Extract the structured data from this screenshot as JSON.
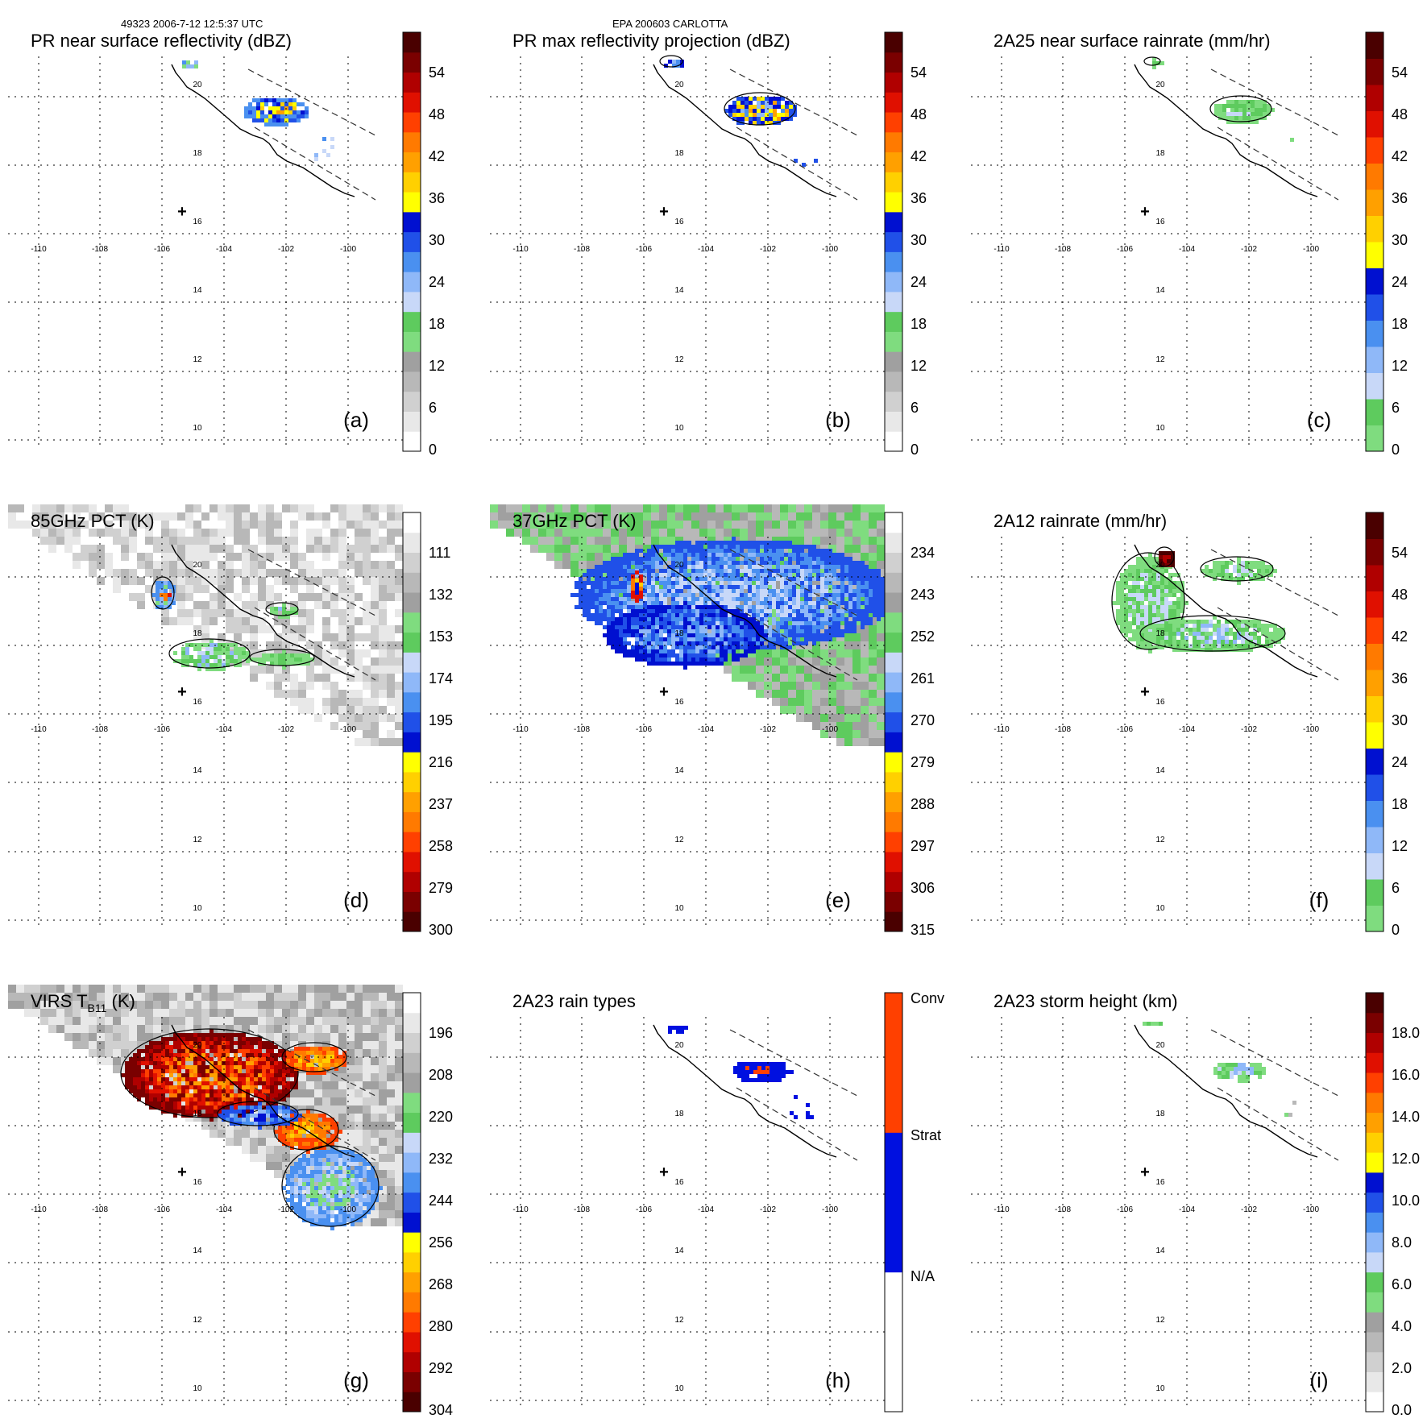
{
  "header": {
    "orbit_time": "49323 2006-7-12 12:5:37 UTC",
    "storm": "EPA 200603 CARLOTTA"
  },
  "map": {
    "lon_labels": [
      "-110",
      "-108",
      "-106",
      "-104",
      "-102",
      "-100"
    ],
    "lat_labels": [
      "20",
      "18",
      "16",
      "14",
      "12",
      "10"
    ],
    "center_marker": "+"
  },
  "colors": {
    "coast": "#000000",
    "grid": "#000000",
    "swath": "#333333",
    "palette_dbz": [
      "#ffffff",
      "#e8e8e8",
      "#d0d0d0",
      "#b8b8b8",
      "#a0a0a0",
      "#7fdc7f",
      "#5ecb5e",
      "#c8d8f8",
      "#8fb8f8",
      "#4a90f0",
      "#2050e8",
      "#0010d0",
      "#ffff00",
      "#ffd000",
      "#ffa000",
      "#ff7a00",
      "#ff4000",
      "#e01000",
      "#b00000",
      "#7a0000",
      "#4a0000"
    ],
    "palette_rain": [
      "#7fdc7f",
      "#5ecb5e",
      "#c8d8f8",
      "#8fb8f8",
      "#4a90f0",
      "#2050e8",
      "#0010d0",
      "#ffff00",
      "#ffd000",
      "#ffa000",
      "#ff7a00",
      "#ff4000",
      "#e01000",
      "#b00000",
      "#7a0000",
      "#4a0000"
    ],
    "palette_pct": [
      "#4a0000",
      "#7a0000",
      "#b00000",
      "#e01000",
      "#ff4000",
      "#ff7a00",
      "#ffa000",
      "#ffd000",
      "#ffff00",
      "#0010d0",
      "#2050e8",
      "#4a90f0",
      "#8fb8f8",
      "#c8d8f8",
      "#5ecb5e",
      "#7fdc7f",
      "#a0a0a0",
      "#b8b8b8",
      "#d0d0d0",
      "#e8e8e8",
      "#ffffff"
    ],
    "palette_type": [
      "#ffffff",
      "#0010e0",
      "#ff4000"
    ]
  },
  "panels": [
    {
      "id": "a",
      "title": "PR near surface reflectivity (dBZ)",
      "label": "(a)",
      "ticks": [
        "0",
        "6",
        "12",
        "18",
        "24",
        "30",
        "36",
        "42",
        "48",
        "54"
      ],
      "palette": "palette_dbz",
      "field": "pr"
    },
    {
      "id": "b",
      "title": "PR max reflectivity projection (dBZ)",
      "label": "(b)",
      "ticks": [
        "0",
        "6",
        "12",
        "18",
        "24",
        "30",
        "36",
        "42",
        "48",
        "54"
      ],
      "palette": "palette_dbz",
      "field": "prmax"
    },
    {
      "id": "c",
      "title": "2A25 near surface rainrate (mm/hr)",
      "label": "(c)",
      "ticks": [
        "0",
        "6",
        "12",
        "18",
        "24",
        "30",
        "36",
        "42",
        "48",
        "54"
      ],
      "palette": "palette_rain",
      "field": "rain25"
    },
    {
      "id": "d",
      "title": "85GHz PCT (K)",
      "label": "(d)",
      "ticks": [
        "300",
        "279",
        "258",
        "237",
        "216",
        "195",
        "174",
        "153",
        "132",
        "111"
      ],
      "palette": "palette_pct",
      "field": "pct85"
    },
    {
      "id": "e",
      "title": "37GHz PCT (K)",
      "label": "(e)",
      "ticks": [
        "315",
        "306",
        "297",
        "288",
        "279",
        "270",
        "261",
        "252",
        "243",
        "234"
      ],
      "palette": "palette_pct",
      "field": "pct37"
    },
    {
      "id": "f",
      "title": "2A12 rainrate (mm/hr)",
      "label": "(f)",
      "ticks": [
        "0",
        "6",
        "12",
        "18",
        "24",
        "30",
        "36",
        "42",
        "48",
        "54"
      ],
      "palette": "palette_rain",
      "field": "rain12"
    },
    {
      "id": "g",
      "title_main": "VIRS T",
      "title_sub": "B11",
      "title_unit": " (K)",
      "label": "(g)",
      "ticks": [
        "304",
        "292",
        "280",
        "268",
        "256",
        "244",
        "232",
        "220",
        "208",
        "196"
      ],
      "palette": "palette_pct",
      "field": "virs"
    },
    {
      "id": "h",
      "title": "2A23 rain types",
      "label": "(h)",
      "ticks": [
        "N/A",
        "Strat",
        "Conv"
      ],
      "palette": "palette_type",
      "field": "rtype"
    },
    {
      "id": "i",
      "title": "2A23 storm height (km)",
      "label": "(i)",
      "ticks": [
        "0.0",
        "2.0",
        "4.0",
        "6.0",
        "8.0",
        "10.0",
        "12.0",
        "14.0",
        "16.0",
        "18.0"
      ],
      "palette": "palette_dbz",
      "field": "height"
    }
  ]
}
